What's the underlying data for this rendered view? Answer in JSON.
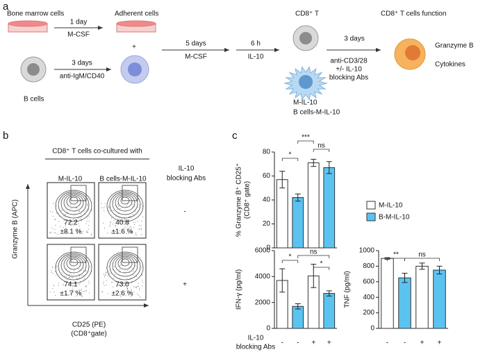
{
  "panel_a": {
    "label": "a",
    "bone_marrow": "Bone marrow cells",
    "step1_time": "1 day",
    "step1_agent": "M-CSF",
    "adherent": "Adherent cells",
    "plus": "+",
    "b_cells": "B cells",
    "step2_time": "3 days",
    "step2_agent": "anti-IgM/CD40",
    "step3_time": "5 days",
    "step3_agent": "M-CSF",
    "step4_time": "6 h",
    "step4_agent": "IL-10",
    "cd8": "CD8⁺ T",
    "m_il10": "M-IL-10",
    "b_m_il10": "B cells-M-IL-10",
    "step5_time": "3 days",
    "step5_agent": [
      "anti-CD3/28",
      "+/- IL-10",
      "blocking Abs"
    ],
    "function": "CD8⁺ T cells function",
    "readouts": [
      "Granzyme B",
      "Cytokines"
    ]
  },
  "panel_b": {
    "label": "b",
    "header": "CD8⁺ T cells co-cultured with",
    "columns": [
      "M-IL-10",
      "B cells-M-IL-10"
    ],
    "blocking": [
      "IL-10",
      "blocking Abs"
    ],
    "rows": [
      "-",
      "+"
    ],
    "y_label": "Granzyme B (APC)",
    "x_label": [
      "CD25 (PE)",
      "(CD8⁺gate)"
    ],
    "plots": [
      {
        "percent": "72.2",
        "sd": "±8.1 %"
      },
      {
        "percent": "40.8",
        "sd": "±1.6 %"
      },
      {
        "percent": "74.1",
        "sd": "±1.7 %"
      },
      {
        "percent": "73.0",
        "sd": "±2.6 %"
      }
    ]
  },
  "panel_c": {
    "label": "c",
    "blocking": [
      "IL-10",
      "blocking Abs"
    ]
  },
  "chart_data": [
    {
      "type": "bar",
      "y_label": [
        "% Granzyme B⁺ CD25⁺",
        "(CD8⁺ gate)"
      ],
      "categories": [
        null,
        null,
        null,
        null
      ],
      "ylim": [
        0,
        80
      ],
      "yticks": [
        0,
        20,
        40,
        60,
        80
      ],
      "series": [
        {
          "name": "M-IL-10",
          "color": "#ffffff",
          "values": [
            57,
            null,
            71,
            null
          ],
          "errors": [
            7,
            null,
            3,
            null
          ]
        },
        {
          "name": "B-M-IL-10",
          "color": "#5bc3f0",
          "values": [
            null,
            42,
            null,
            67
          ],
          "errors": [
            null,
            3,
            null,
            5
          ]
        }
      ],
      "significance": [
        "*",
        "***",
        "ns"
      ]
    },
    {
      "type": "bar",
      "y_label": [
        "IFN-γ (pg/ml)"
      ],
      "categories": [
        "-",
        "-",
        "+",
        "+"
      ],
      "ylim": [
        0,
        6000
      ],
      "yticks": [
        0,
        2000,
        4000,
        6000
      ],
      "series": [
        {
          "color": "#ffffff",
          "values": [
            3700,
            null,
            4050,
            null
          ],
          "errors": [
            900,
            null,
            900,
            null
          ]
        },
        {
          "color": "#5bc3f0",
          "values": [
            null,
            1700,
            null,
            2700
          ],
          "errors": [
            null,
            200,
            null,
            200
          ]
        }
      ],
      "significance": [
        "*",
        "ns",
        "*"
      ]
    },
    {
      "type": "bar",
      "y_label": [
        "TNF (pg/ml)"
      ],
      "categories": [
        "-",
        "-",
        "+",
        "+"
      ],
      "ylim": [
        0,
        1000
      ],
      "yticks": [
        0,
        200,
        400,
        600,
        800,
        1000
      ],
      "series": [
        {
          "color": "#ffffff",
          "values": [
            900,
            null,
            800,
            null
          ],
          "errors": [
            10,
            null,
            40,
            null
          ]
        },
        {
          "color": "#5bc3f0",
          "values": [
            null,
            650,
            null,
            750
          ],
          "errors": [
            null,
            60,
            null,
            50
          ]
        }
      ],
      "significance": [
        "**",
        "ns"
      ]
    }
  ]
}
